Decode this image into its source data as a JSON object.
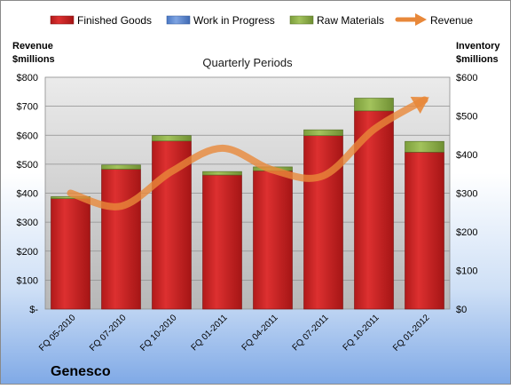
{
  "chart_data": {
    "type": "bar",
    "title": "Quarterly Periods",
    "company": "Genesco",
    "categories": [
      "FQ 05-2010",
      "FQ 07-2010",
      "FQ 10-2010",
      "FQ 01-2011",
      "FQ 04-2011",
      "FQ 07-2011",
      "FQ 10-2011",
      "FQ 01-2012"
    ],
    "y_left": {
      "label_line1": "Revenue",
      "label_line2": "$millions",
      "range": [
        0,
        800
      ],
      "ticks": [
        "$-",
        "$100",
        "$200",
        "$300",
        "$400",
        "$500",
        "$600",
        "$700",
        "$800"
      ]
    },
    "y_right": {
      "label_line1": "Inventory",
      "label_line2": "$millions",
      "range": [
        0,
        600
      ],
      "ticks": [
        "$0",
        "$100",
        "$200",
        "$300",
        "$400",
        "$500",
        "$600"
      ]
    },
    "series": [
      {
        "name": "Finished Goods",
        "axis": "right",
        "kind": "stacked-bar",
        "color": "#cc2222",
        "values": [
          286,
          362,
          435,
          347,
          358,
          449,
          513,
          406
        ]
      },
      {
        "name": "Work in Progress",
        "axis": "right",
        "kind": "stacked-bar",
        "color": "#5b8bd6",
        "values": [
          0,
          0,
          0,
          0,
          0,
          0,
          0,
          0
        ]
      },
      {
        "name": "Raw Materials",
        "axis": "right",
        "kind": "stacked-bar",
        "color": "#8db04a",
        "values": [
          5,
          11,
          14,
          9,
          10,
          15,
          33,
          28
        ]
      },
      {
        "name": "Revenue",
        "axis": "left",
        "kind": "line",
        "color": "#e8883a",
        "values": [
          400,
          355,
          475,
          555,
          480,
          460,
          620,
          722
        ]
      }
    ],
    "grid": true,
    "legend_position": "top"
  }
}
